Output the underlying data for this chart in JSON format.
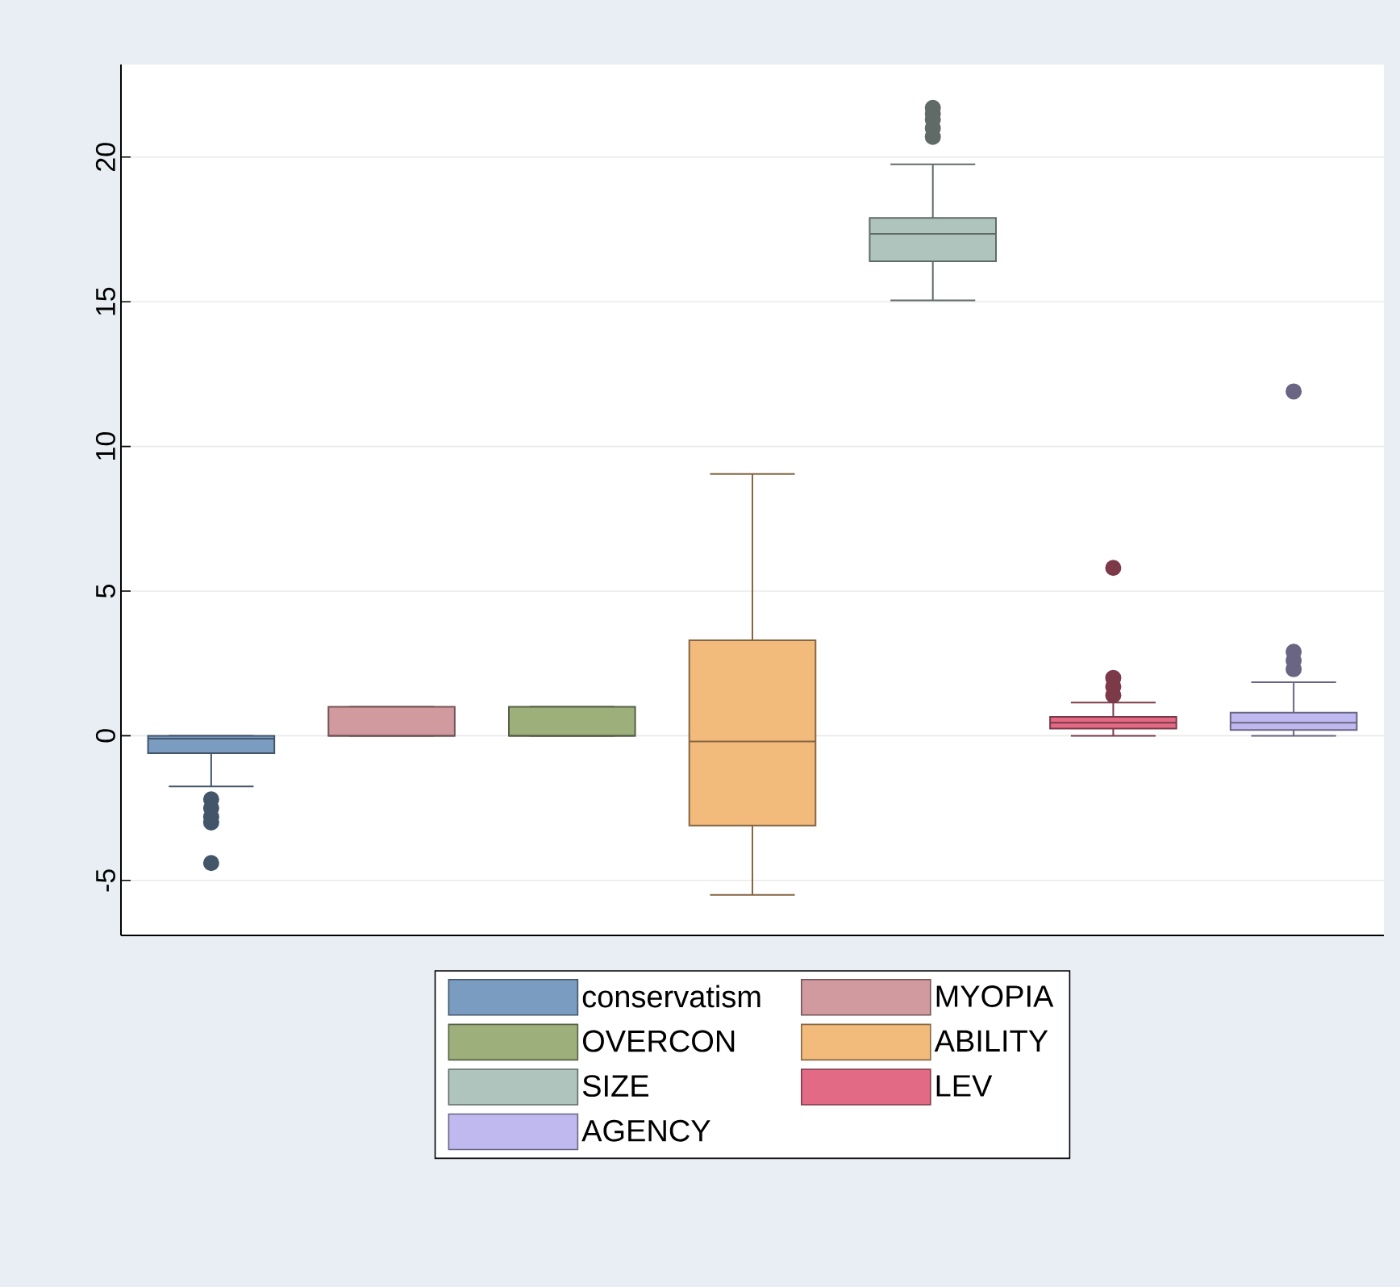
{
  "chart_data": {
    "type": "box",
    "categories": [
      null,
      null,
      null,
      null,
      null,
      null,
      null
    ],
    "ylim": [
      -6.9,
      23.2
    ],
    "yticks": [
      -5,
      0,
      5,
      10,
      15,
      20
    ],
    "grid": "y",
    "tick_labels": "y",
    "legend": "bottom",
    "marker": "circle",
    "series": [
      {
        "name": "conservatism",
        "color": "#7a9cc0",
        "boxes": [
          {
            "low": -1.75,
            "q1": -0.6,
            "median": -0.1,
            "q3": 0,
            "high": 0,
            "outliers": [
              -2.2,
              -2.5,
              -2.8,
              -3.0,
              -4.4
            ]
          },
          null,
          null,
          null,
          null,
          null,
          null
        ]
      },
      {
        "name": "MYOPIA",
        "color": "#d09a9e",
        "boxes": [
          null,
          {
            "low": 0,
            "q1": 0,
            "median": 0,
            "q3": 1,
            "high": 1
          },
          null,
          null,
          null,
          null,
          null
        ]
      },
      {
        "name": "OVERCON",
        "color": "#9db07c",
        "boxes": [
          null,
          null,
          {
            "low": 0,
            "q1": 0,
            "median": 0,
            "q3": 1,
            "high": 1
          },
          null,
          null,
          null,
          null
        ]
      },
      {
        "name": "ABILITY",
        "color": "#f2bb7b",
        "boxes": [
          null,
          null,
          null,
          {
            "low": -5.5,
            "q1": -3.1,
            "median": -0.2,
            "q3": 3.3,
            "high": 9.05
          },
          null,
          null,
          null
        ]
      },
      {
        "name": "SIZE",
        "color": "#b0c4be",
        "boxes": [
          null,
          null,
          null,
          null,
          {
            "low": 15.05,
            "q1": 16.4,
            "median": 17.35,
            "q3": 17.9,
            "high": 19.75,
            "outliers": [
              20.7,
              21.0,
              21.3,
              21.5,
              21.7
            ]
          },
          null,
          null
        ]
      },
      {
        "name": "LEV",
        "color": "#e26a85",
        "boxes": [
          null,
          null,
          null,
          null,
          null,
          {
            "low": 0,
            "q1": 0.25,
            "median": 0.45,
            "q3": 0.65,
            "high": 1.15,
            "outliers": [
              1.4,
              1.7,
              2.0,
              5.8
            ]
          },
          null
        ]
      },
      {
        "name": "AGENCY",
        "color": "#c0b9ef",
        "boxes": [
          null,
          null,
          null,
          null,
          null,
          null,
          {
            "low": 0,
            "q1": 0.2,
            "median": 0.45,
            "q3": 0.8,
            "high": 1.85,
            "outliers": [
              2.3,
              2.6,
              2.9,
              11.9
            ]
          }
        ]
      }
    ]
  }
}
